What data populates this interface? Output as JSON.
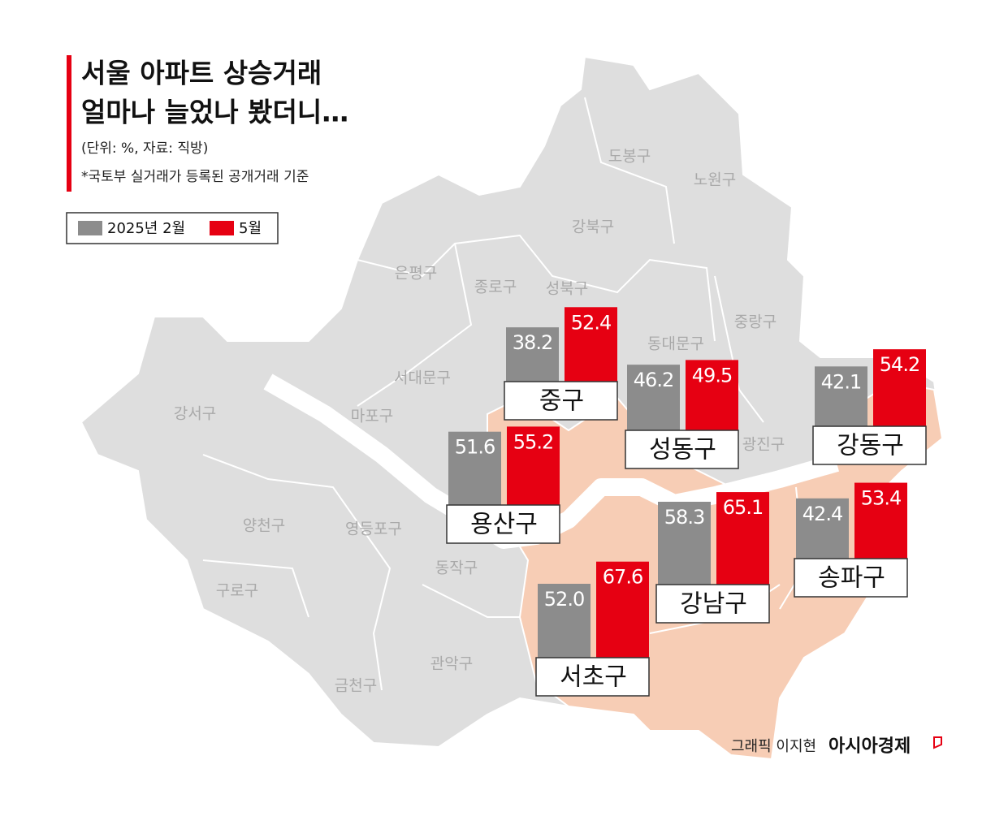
{
  "chart_data": {
    "type": "bar",
    "title_lines": [
      "서울 아파트 상승거래",
      "얼마나 늘었나 봤더니…"
    ],
    "subtitle": "(단위: %, 자료: 직방)",
    "note": "*국토부 실거래가 등록된 공개거래 기준",
    "categories": [
      "중구",
      "성동구",
      "강동구",
      "용산구",
      "강남구",
      "송파구",
      "서초구"
    ],
    "series": [
      {
        "name": "2025년 2월",
        "color": "#8c8c8c",
        "values": [
          38.2,
          46.2,
          42.1,
          51.6,
          58.3,
          42.4,
          52.0
        ],
        "value_labels": [
          "38.2",
          "46.2",
          "42.1",
          "51.6",
          "58.3",
          "42.4",
          "52.0"
        ]
      },
      {
        "name": "5월",
        "color": "#e60012",
        "values": [
          52.4,
          49.5,
          54.2,
          55.2,
          65.1,
          53.4,
          67.6
        ],
        "value_labels": [
          "52.4",
          "49.5",
          "54.2",
          "55.2",
          "65.1",
          "53.4",
          "67.6"
        ]
      }
    ],
    "map_labels": [
      "도봉구",
      "노원구",
      "강북구",
      "은평구",
      "종로구",
      "성북구",
      "중랑구",
      "동대문구",
      "서대문구",
      "마포구",
      "강서구",
      "광진구",
      "양천구",
      "영등포구",
      "동작구",
      "구로구",
      "관악구",
      "금천구"
    ],
    "credit": "그래픽 이지현",
    "brand": "아시아경제"
  }
}
